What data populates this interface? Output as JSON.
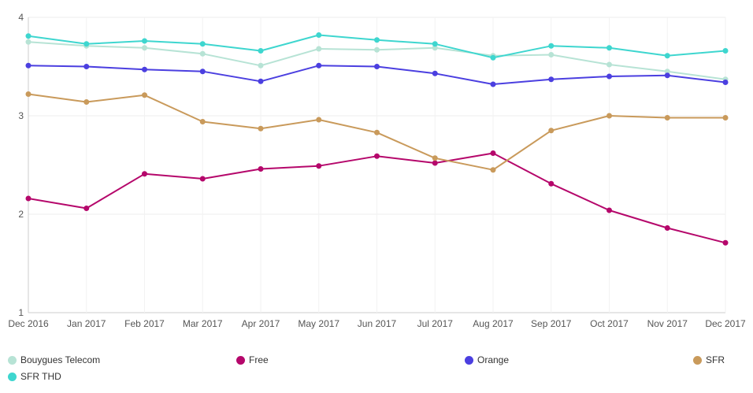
{
  "chart_data": {
    "type": "line",
    "title": "",
    "xlabel": "",
    "ylabel": "",
    "categories": [
      "Dec 2016",
      "Jan 2017",
      "Feb 2017",
      "Mar 2017",
      "Apr 2017",
      "May 2017",
      "Jun 2017",
      "Jul 2017",
      "Aug 2017",
      "Sep 2017",
      "Oct 2017",
      "Nov 2017",
      "Dec 2017"
    ],
    "ylim": [
      1,
      4
    ],
    "yticks": [
      "1",
      "2",
      "3",
      "4"
    ],
    "grid": true,
    "legend_position": "bottom",
    "series": [
      {
        "name": "Bouygues Telecom",
        "color": "#b7e3d5",
        "values": [
          3.75,
          3.71,
          3.69,
          3.63,
          3.51,
          3.68,
          3.67,
          3.69,
          3.61,
          3.62,
          3.52,
          3.45,
          3.37
        ]
      },
      {
        "name": "Free",
        "color": "#b5076b",
        "values": [
          2.16,
          2.06,
          2.41,
          2.36,
          2.46,
          2.49,
          2.59,
          2.52,
          2.62,
          2.31,
          2.04,
          1.86,
          1.71
        ]
      },
      {
        "name": "Orange",
        "color": "#4b3fe0",
        "values": [
          3.51,
          3.5,
          3.47,
          3.45,
          3.35,
          3.51,
          3.5,
          3.43,
          3.32,
          3.37,
          3.4,
          3.41,
          3.34
        ]
      },
      {
        "name": "SFR",
        "color": "#c99a5b",
        "values": [
          3.22,
          3.14,
          3.21,
          2.94,
          2.87,
          2.96,
          2.83,
          2.57,
          2.45,
          2.85,
          3.0,
          2.98,
          2.98
        ]
      },
      {
        "name": "SFR THD",
        "color": "#3ed6cf",
        "values": [
          3.81,
          3.73,
          3.76,
          3.73,
          3.66,
          3.82,
          3.77,
          3.73,
          3.59,
          3.71,
          3.69,
          3.61,
          3.66
        ]
      }
    ]
  }
}
